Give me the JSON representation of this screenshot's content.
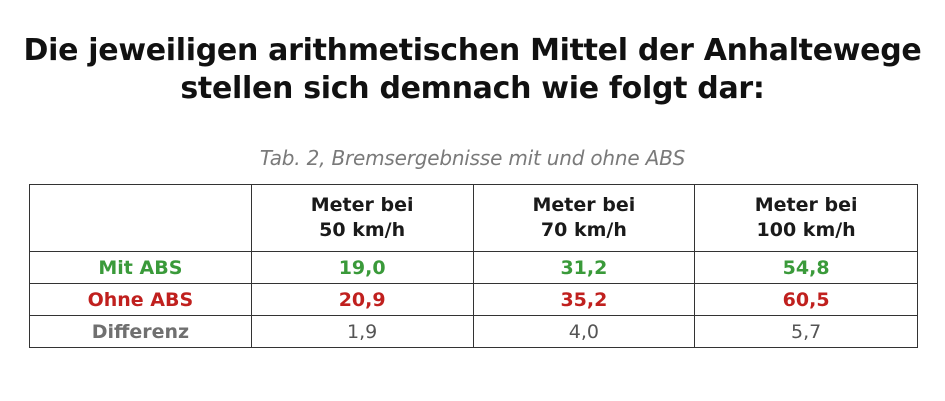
{
  "heading": {
    "line1": "Die jeweiligen arithmetischen Mittel der Anhaltewege",
    "line2": "stellen sich demnach wie folgt dar:"
  },
  "caption": "Tab. 2, Bremsergebnisse mit und ohne ABS",
  "table": {
    "headers": [
      {
        "line1": "Meter bei",
        "line2": "50 km/h"
      },
      {
        "line1": "Meter bei",
        "line2": "70 km/h"
      },
      {
        "line1": "Meter bei",
        "line2": "100 km/h"
      }
    ],
    "rows": [
      {
        "label": "Mit ABS",
        "values": [
          "19,0",
          "31,2",
          "54,8"
        ],
        "color": "#3a9a3a"
      },
      {
        "label": "Ohne ABS",
        "values": [
          "20,9",
          "35,2",
          "60,5"
        ],
        "color": "#c0201e"
      },
      {
        "label": "Differenz",
        "values": [
          "1,9",
          "4,0",
          "5,7"
        ],
        "color": "#707070"
      }
    ]
  }
}
